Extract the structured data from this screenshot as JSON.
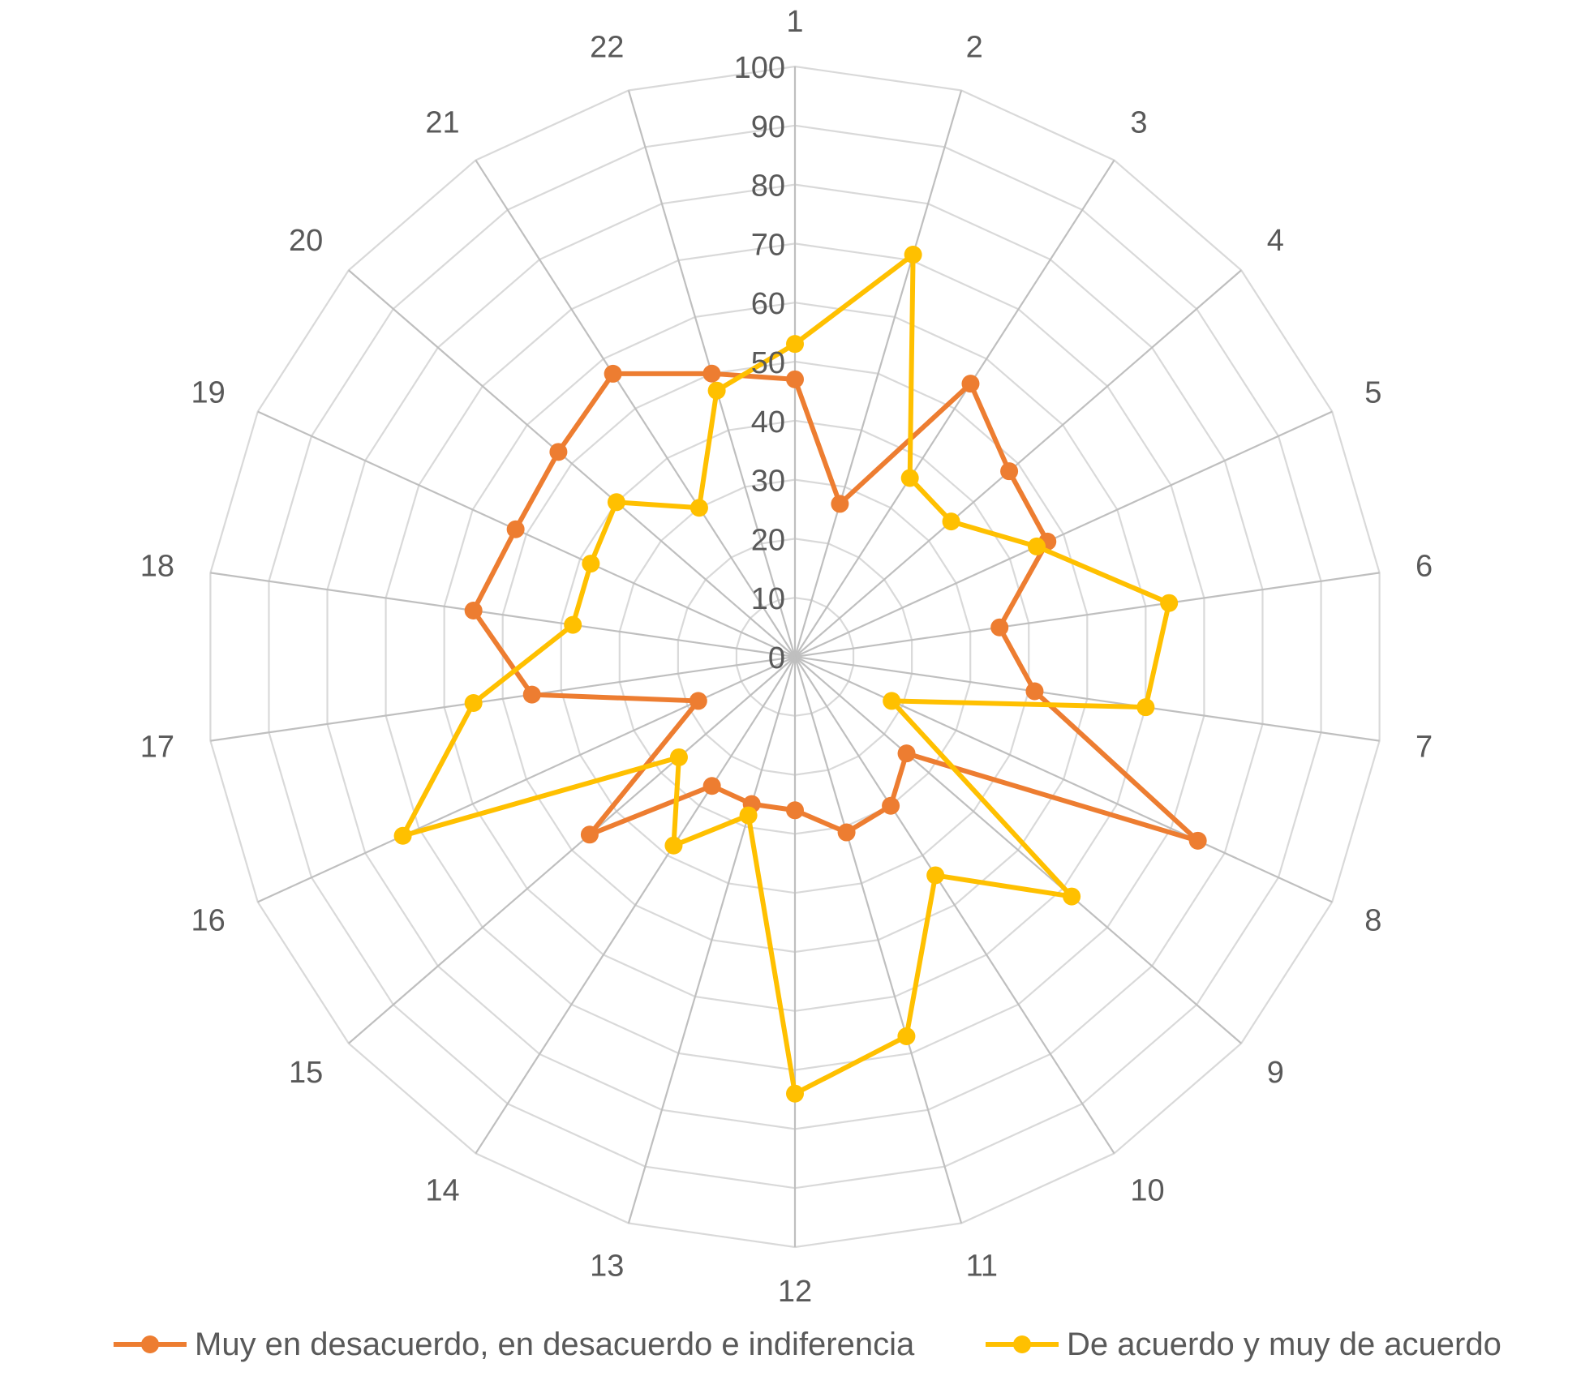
{
  "chart_data": {
    "type": "radar",
    "categories": [
      "1",
      "2",
      "3",
      "4",
      "5",
      "6",
      "7",
      "8",
      "9",
      "10",
      "11",
      "12",
      "13",
      "14",
      "15",
      "16",
      "17",
      "18",
      "19",
      "20",
      "21",
      "22"
    ],
    "rlim": [
      0,
      100
    ],
    "ticks": [
      "0",
      "10",
      "20",
      "30",
      "40",
      "50",
      "60",
      "70",
      "80",
      "90",
      "100"
    ],
    "tick_values": [
      0,
      10,
      20,
      30,
      40,
      50,
      60,
      70,
      80,
      90,
      100
    ],
    "grid": true,
    "legend_position": "bottom",
    "series": [
      {
        "name": "Muy en desacuerdo, en desacuerdo e indiferencia",
        "color": "#ED7D31",
        "values": [
          47,
          27,
          55,
          48,
          47,
          35,
          41,
          75,
          25,
          30,
          31,
          26,
          26,
          26,
          46,
          18,
          45,
          55,
          52,
          53,
          57,
          50
        ]
      },
      {
        "name": "De acuerdo y muy de acuerdo",
        "color": "#FFC000",
        "values": [
          53,
          71,
          36,
          35,
          45,
          64,
          60,
          18,
          62,
          44,
          67,
          74,
          28,
          38,
          26,
          73,
          55,
          38,
          38,
          40,
          30,
          47
        ]
      }
    ]
  },
  "colors": {
    "grid": "#D9D9D9",
    "spoke": "#BFBFBF",
    "text": "#595959"
  }
}
